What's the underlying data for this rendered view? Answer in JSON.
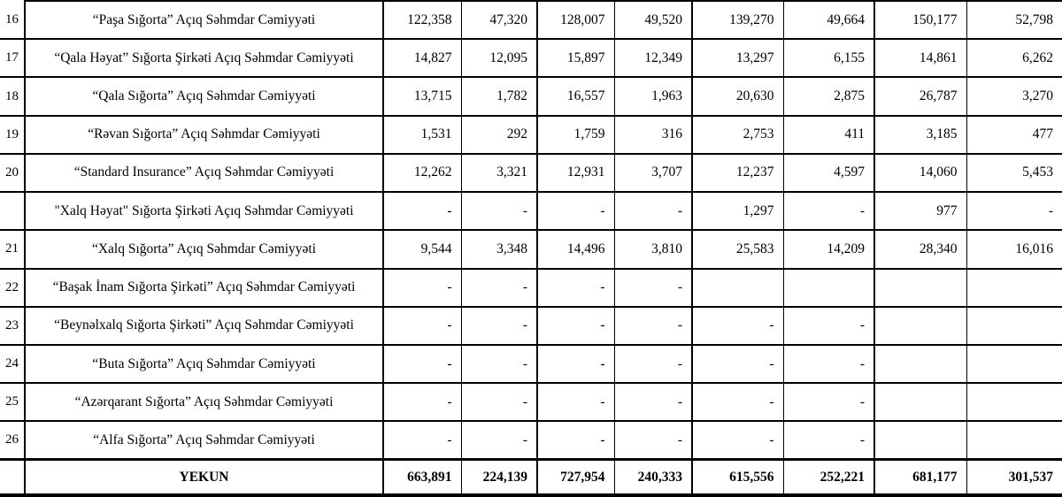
{
  "table": {
    "total_label": "YEKUN",
    "rows": [
      {
        "num": "16",
        "name": "“Paşa Sığorta” Açıq Səhmdar Cəmiyyəti",
        "values": [
          "122,358",
          "47,320",
          "128,007",
          "49,520",
          "139,270",
          "49,664",
          "150,177",
          "52,798"
        ]
      },
      {
        "num": "17",
        "name": "“Qala Həyat” Sığorta Şirkəti Açıq Səhmdar Cəmiyyəti",
        "values": [
          "14,827",
          "12,095",
          "15,897",
          "12,349",
          "13,297",
          "6,155",
          "14,861",
          "6,262"
        ]
      },
      {
        "num": "18",
        "name": "“Qala Sığorta” Açıq Səhmdar Cəmiyyəti",
        "values": [
          "13,715",
          "1,782",
          "16,557",
          "1,963",
          "20,630",
          "2,875",
          "26,787",
          "3,270"
        ]
      },
      {
        "num": "19",
        "name": "“Rəvan Sığorta” Açıq Səhmdar Cəmiyyəti",
        "values": [
          "1,531",
          "292",
          "1,759",
          "316",
          "2,753",
          "411",
          "3,185",
          "477"
        ]
      },
      {
        "num": "20",
        "name": "“Standard Insurance” Açıq Səhmdar Cəmiyyəti",
        "values": [
          "12,262",
          "3,321",
          "12,931",
          "3,707",
          "12,237",
          "4,597",
          "14,060",
          "5,453"
        ]
      },
      {
        "num": "",
        "name": "\"Xalq Həyat\" Sığorta Şirkəti Açıq Səhmdar Cəmiyyəti",
        "values": [
          "-",
          "-",
          "-",
          "-",
          "1,297",
          "-",
          "977",
          "-"
        ]
      },
      {
        "num": "21",
        "name": "“Xalq Sığorta” Açıq Səhmdar Cəmiyyəti",
        "values": [
          "9,544",
          "3,348",
          "14,496",
          "3,810",
          "25,583",
          "14,209",
          "28,340",
          "16,016"
        ]
      },
      {
        "num": "22",
        "name": "“Başak İnam Sığorta Şirkəti” Açıq Səhmdar Cəmiyyəti",
        "values": [
          "-",
          "-",
          "-",
          "-",
          "",
          "",
          "",
          ""
        ]
      },
      {
        "num": "23",
        "name": "“Beynəlxalq Sığorta Şirkəti” Açıq Səhmdar Cəmiyyəti",
        "values": [
          "-",
          "-",
          "-",
          "-",
          "-",
          "-",
          "",
          ""
        ]
      },
      {
        "num": "24",
        "name": "“Buta Sığorta” Açıq Səhmdar Cəmiyyəti",
        "values": [
          "-",
          "-",
          "-",
          "-",
          "-",
          "-",
          "",
          ""
        ]
      },
      {
        "num": "25",
        "name": "“Azərqarant Sığorta” Açıq Səhmdar Cəmiyyəti",
        "values": [
          "-",
          "-",
          "-",
          "-",
          "-",
          "-",
          "",
          ""
        ]
      },
      {
        "num": "26",
        "name": "“Alfa Sığorta” Açıq Səhmdar Cəmiyyəti",
        "values": [
          "-",
          "-",
          "-",
          "-",
          "-",
          "-",
          "",
          ""
        ]
      }
    ],
    "totals": [
      "663,891",
      "224,139",
      "727,954",
      "240,333",
      "615,556",
      "252,221",
      "681,177",
      "301,537"
    ]
  }
}
